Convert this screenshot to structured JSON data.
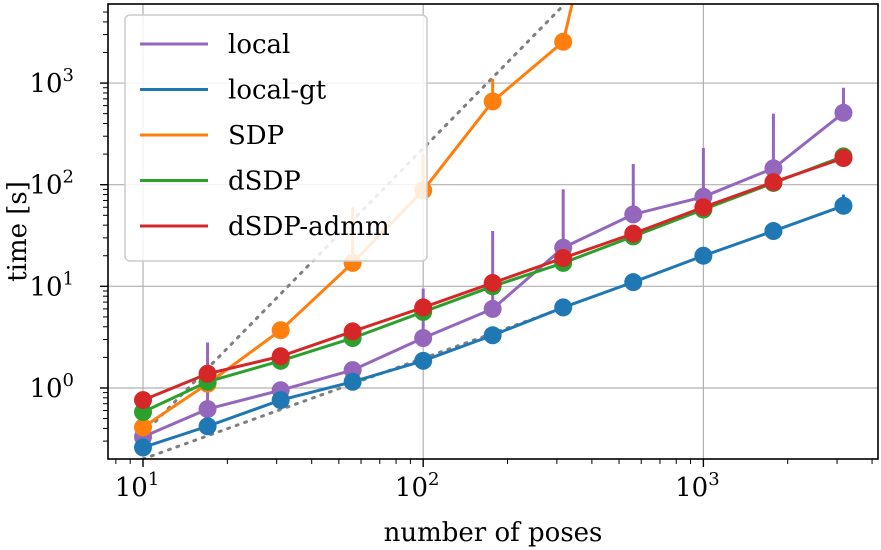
{
  "chart_data": {
    "type": "line",
    "xscale": "log",
    "yscale": "log",
    "xlabel": "number of poses",
    "ylabel": "time [s]",
    "xlim": [
      7.5,
      4200
    ],
    "ylim": [
      0.2,
      6000
    ],
    "grid": true,
    "legend_position": "top-left",
    "x_ticks": [
      {
        "value": 10,
        "base": "10",
        "exp": "1"
      },
      {
        "value": 100,
        "base": "10",
        "exp": "2"
      },
      {
        "value": 1000,
        "base": "10",
        "exp": "3"
      }
    ],
    "y_ticks": [
      {
        "value": 1,
        "base": "10",
        "exp": "0"
      },
      {
        "value": 10,
        "base": "10",
        "exp": "1"
      },
      {
        "value": 100,
        "base": "10",
        "exp": "2"
      },
      {
        "value": 1000,
        "base": "10",
        "exp": "3"
      }
    ],
    "series": [
      {
        "name": "local",
        "color": "#9467bd",
        "x": [
          10,
          17,
          31,
          56,
          100,
          177,
          316,
          562,
          1000,
          1778,
          3162
        ],
        "y": [
          0.33,
          0.62,
          0.95,
          1.5,
          3.1,
          6.0,
          24,
          51,
          76,
          145,
          510
        ],
        "err_high": [
          null,
          2.8,
          null,
          null,
          9.5,
          35,
          90,
          160,
          230,
          500,
          900
        ]
      },
      {
        "name": "local-gt",
        "color": "#1f77b4",
        "x": [
          10,
          17,
          31,
          56,
          100,
          177,
          316,
          562,
          1000,
          1778,
          3162
        ],
        "y": [
          0.26,
          0.42,
          0.76,
          1.15,
          1.85,
          3.3,
          6.2,
          11,
          20,
          35,
          62
        ],
        "err_high": [
          null,
          null,
          null,
          null,
          null,
          null,
          null,
          null,
          null,
          null,
          80
        ]
      },
      {
        "name": "SDP",
        "color": "#ff7f0e",
        "x": [
          10,
          17,
          31,
          56,
          100,
          177,
          316,
          340
        ],
        "y": [
          0.41,
          1.1,
          3.7,
          17,
          88,
          660,
          2550,
          6000
        ],
        "err_high": [
          null,
          null,
          null,
          60,
          200,
          1100,
          null,
          null
        ]
      },
      {
        "name": "dSDP",
        "color": "#2ca02c",
        "x": [
          10,
          17,
          31,
          56,
          100,
          177,
          316,
          562,
          1000,
          1778,
          3162
        ],
        "y": [
          0.58,
          1.15,
          1.85,
          3.1,
          5.6,
          10,
          17,
          31,
          57,
          104,
          190
        ],
        "err_high": []
      },
      {
        "name": "dSDP-admm",
        "color": "#d62728",
        "x": [
          10,
          17,
          31,
          56,
          100,
          177,
          316,
          562,
          1000,
          1778,
          3162
        ],
        "y": [
          0.76,
          1.38,
          2.05,
          3.6,
          6.2,
          10.8,
          19,
          33,
          60,
          106,
          183
        ],
        "err_high": []
      }
    ],
    "reference_lines": [
      {
        "color": "#7f7f7f",
        "x": [
          10,
          320
        ],
        "y": [
          0.35,
          6000
        ]
      },
      {
        "color": "#7f7f7f",
        "x": [
          10,
          320
        ],
        "y": [
          0.2,
          6.2
        ]
      }
    ]
  }
}
